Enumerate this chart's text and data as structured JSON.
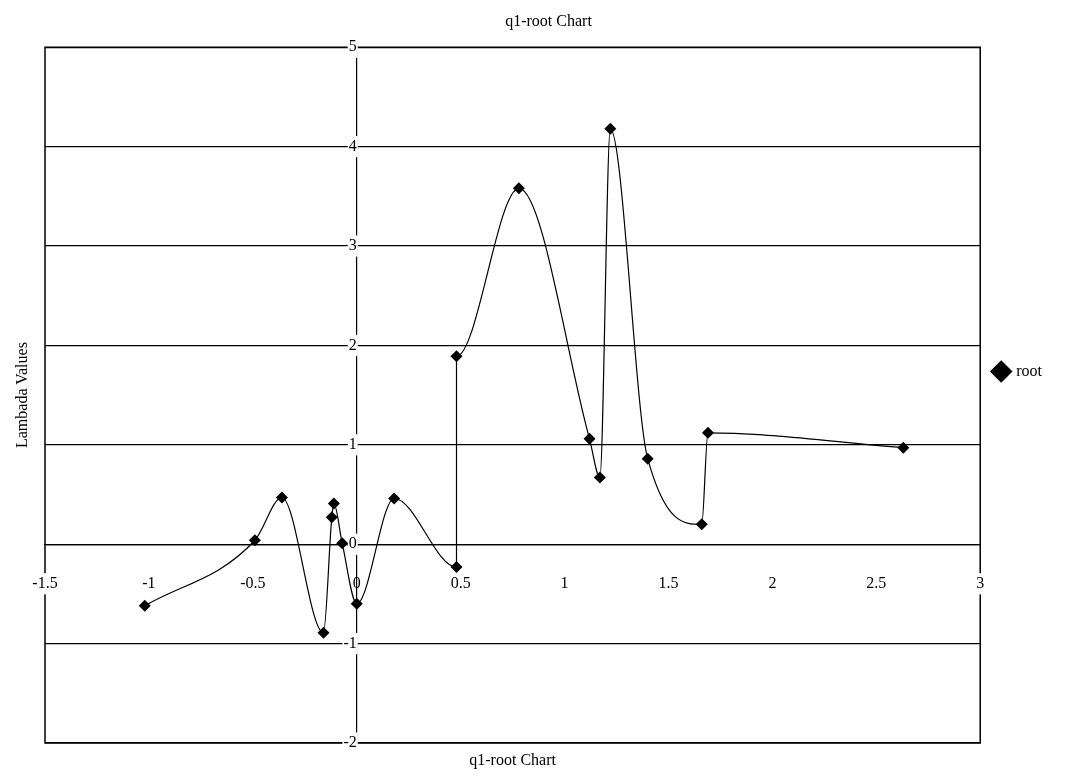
{
  "chart_data": {
    "type": "line",
    "title": "q1-root Chart",
    "xlabel": "q1-root Chart",
    "ylabel": "Lambada Values",
    "x": [
      -1.02,
      -0.49,
      -0.36,
      -0.16,
      -0.12,
      -0.11,
      -0.07,
      0.0,
      0.18,
      0.48,
      0.48,
      0.78,
      1.12,
      1.17,
      1.22,
      1.4,
      1.66,
      1.69,
      2.63
    ],
    "series": [
      {
        "name": "root",
        "color": "#000000",
        "values": [
          -0.62,
          0.04,
          0.47,
          -0.89,
          0.27,
          0.41,
          0.01,
          -0.6,
          0.46,
          -0.23,
          1.89,
          3.58,
          1.06,
          0.67,
          4.18,
          0.86,
          0.2,
          1.12,
          0.97
        ]
      }
    ],
    "xlim": [
      -1.5,
      3
    ],
    "ylim": [
      -2,
      5
    ],
    "xticks": [
      -1.5,
      -1,
      -0.5,
      0,
      0.5,
      1,
      1.5,
      2,
      2.5,
      3
    ],
    "yticks": [
      -2,
      -1,
      0,
      1,
      2,
      3,
      4,
      5
    ],
    "grid": "y",
    "legend": "right",
    "marker": "diamond",
    "line_style": "solid"
  }
}
